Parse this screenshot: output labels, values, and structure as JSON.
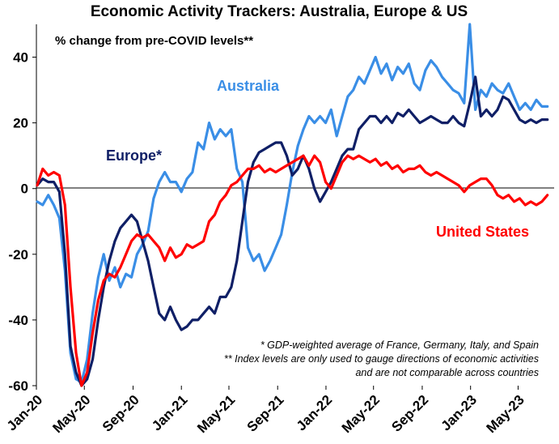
{
  "chart_data": {
    "type": "line",
    "title": "Economic Activity Trackers: Australia, Europe & US",
    "subtitle": "% change from pre-COVID levels**",
    "xlabel": "",
    "ylabel": "",
    "ylim": [
      -60,
      50
    ],
    "yticks": [
      -60,
      -40,
      -20,
      0,
      20,
      40
    ],
    "x_ticks": [
      "Jan-20",
      "May-20",
      "Sep-20",
      "Jan-21",
      "May-21",
      "Sep-21",
      "Jan-22",
      "May-22",
      "Sep-22",
      "Jan-23",
      "May-23"
    ],
    "x_range": [
      "2020-01-01",
      "2023-07-31"
    ],
    "grid": false,
    "annotations": [
      "* GDP-weighted average of France, Germany, Italy, and Spain",
      "** Index levels are only used to gauge directions of economic activities",
      "and are not comparable across countries"
    ],
    "series": [
      {
        "name": "Australia",
        "color": "#3A8EE6",
        "points": [
          [
            "2020-01-03",
            -4
          ],
          [
            "2020-01-17",
            -5
          ],
          [
            "2020-01-31",
            -2
          ],
          [
            "2020-02-14",
            -5
          ],
          [
            "2020-02-28",
            -9
          ],
          [
            "2020-03-13",
            -25
          ],
          [
            "2020-03-27",
            -50
          ],
          [
            "2020-04-10",
            -58
          ],
          [
            "2020-04-24",
            -59
          ],
          [
            "2020-05-08",
            -52
          ],
          [
            "2020-05-22",
            -38
          ],
          [
            "2020-06-05",
            -27
          ],
          [
            "2020-06-19",
            -20
          ],
          [
            "2020-07-03",
            -28
          ],
          [
            "2020-07-17",
            -24
          ],
          [
            "2020-07-31",
            -30
          ],
          [
            "2020-08-14",
            -26
          ],
          [
            "2020-08-28",
            -27
          ],
          [
            "2020-09-11",
            -20
          ],
          [
            "2020-09-25",
            -17
          ],
          [
            "2020-10-09",
            -13
          ],
          [
            "2020-10-23",
            -3
          ],
          [
            "2020-11-06",
            2
          ],
          [
            "2020-11-20",
            5
          ],
          [
            "2020-12-04",
            2
          ],
          [
            "2020-12-18",
            2
          ],
          [
            "2021-01-01",
            -1
          ],
          [
            "2021-01-15",
            3
          ],
          [
            "2021-01-29",
            5
          ],
          [
            "2021-02-12",
            14
          ],
          [
            "2021-02-26",
            12
          ],
          [
            "2021-03-12",
            20
          ],
          [
            "2021-03-26",
            15
          ],
          [
            "2021-04-09",
            18
          ],
          [
            "2021-04-23",
            16
          ],
          [
            "2021-05-07",
            18
          ],
          [
            "2021-05-21",
            6
          ],
          [
            "2021-06-04",
            2
          ],
          [
            "2021-06-18",
            -18
          ],
          [
            "2021-07-02",
            -22
          ],
          [
            "2021-07-16",
            -20
          ],
          [
            "2021-07-30",
            -25
          ],
          [
            "2021-08-13",
            -22
          ],
          [
            "2021-08-27",
            -18
          ],
          [
            "2021-09-10",
            -14
          ],
          [
            "2021-09-24",
            -5
          ],
          [
            "2021-10-08",
            5
          ],
          [
            "2021-10-22",
            13
          ],
          [
            "2021-11-05",
            18
          ],
          [
            "2021-11-19",
            22
          ],
          [
            "2021-12-03",
            20
          ],
          [
            "2021-12-17",
            22
          ],
          [
            "2021-12-31",
            20
          ],
          [
            "2022-01-14",
            24
          ],
          [
            "2022-01-28",
            16
          ],
          [
            "2022-02-11",
            22
          ],
          [
            "2022-02-25",
            28
          ],
          [
            "2022-03-11",
            30
          ],
          [
            "2022-03-25",
            34
          ],
          [
            "2022-04-08",
            32
          ],
          [
            "2022-04-22",
            36
          ],
          [
            "2022-05-06",
            40
          ],
          [
            "2022-05-20",
            35
          ],
          [
            "2022-06-03",
            38
          ],
          [
            "2022-06-17",
            33
          ],
          [
            "2022-07-01",
            37
          ],
          [
            "2022-07-15",
            35
          ],
          [
            "2022-07-29",
            38
          ],
          [
            "2022-08-12",
            32
          ],
          [
            "2022-08-26",
            30
          ],
          [
            "2022-09-09",
            36
          ],
          [
            "2022-09-23",
            39
          ],
          [
            "2022-10-07",
            37
          ],
          [
            "2022-10-21",
            34
          ],
          [
            "2022-11-04",
            32
          ],
          [
            "2022-11-18",
            30
          ],
          [
            "2022-12-02",
            29
          ],
          [
            "2022-12-16",
            26
          ],
          [
            "2022-12-30",
            50
          ],
          [
            "2023-01-13",
            24
          ],
          [
            "2023-01-27",
            30
          ],
          [
            "2023-02-10",
            28
          ],
          [
            "2023-02-24",
            32
          ],
          [
            "2023-03-10",
            30
          ],
          [
            "2023-03-24",
            29
          ],
          [
            "2023-04-07",
            32
          ],
          [
            "2023-04-21",
            28
          ],
          [
            "2023-05-05",
            24
          ],
          [
            "2023-05-19",
            26
          ],
          [
            "2023-06-02",
            24
          ],
          [
            "2023-06-16",
            27
          ],
          [
            "2023-06-30",
            25
          ],
          [
            "2023-07-14",
            25
          ]
        ]
      },
      {
        "name": "Europe*",
        "color": "#0F1F66",
        "points": [
          [
            "2020-01-03",
            1
          ],
          [
            "2020-01-17",
            3
          ],
          [
            "2020-01-31",
            2
          ],
          [
            "2020-02-14",
            2
          ],
          [
            "2020-02-28",
            -1
          ],
          [
            "2020-03-13",
            -20
          ],
          [
            "2020-03-27",
            -48
          ],
          [
            "2020-04-10",
            -56
          ],
          [
            "2020-04-24",
            -60
          ],
          [
            "2020-05-08",
            -58
          ],
          [
            "2020-05-22",
            -52
          ],
          [
            "2020-06-05",
            -40
          ],
          [
            "2020-06-19",
            -30
          ],
          [
            "2020-07-03",
            -22
          ],
          [
            "2020-07-17",
            -16
          ],
          [
            "2020-07-31",
            -12
          ],
          [
            "2020-08-14",
            -10
          ],
          [
            "2020-08-28",
            -8
          ],
          [
            "2020-09-11",
            -10
          ],
          [
            "2020-09-25",
            -16
          ],
          [
            "2020-10-09",
            -22
          ],
          [
            "2020-10-23",
            -30
          ],
          [
            "2020-11-06",
            -38
          ],
          [
            "2020-11-20",
            -40
          ],
          [
            "2020-12-04",
            -36
          ],
          [
            "2020-12-18",
            -40
          ],
          [
            "2021-01-01",
            -43
          ],
          [
            "2021-01-15",
            -42
          ],
          [
            "2021-01-29",
            -40
          ],
          [
            "2021-02-12",
            -40
          ],
          [
            "2021-02-26",
            -38
          ],
          [
            "2021-03-12",
            -36
          ],
          [
            "2021-03-26",
            -38
          ],
          [
            "2021-04-09",
            -33
          ],
          [
            "2021-04-23",
            -33
          ],
          [
            "2021-05-07",
            -30
          ],
          [
            "2021-05-21",
            -22
          ],
          [
            "2021-06-04",
            -10
          ],
          [
            "2021-06-18",
            2
          ],
          [
            "2021-07-02",
            8
          ],
          [
            "2021-07-16",
            11
          ],
          [
            "2021-07-30",
            12
          ],
          [
            "2021-08-13",
            13
          ],
          [
            "2021-08-27",
            14
          ],
          [
            "2021-09-10",
            14
          ],
          [
            "2021-09-24",
            10
          ],
          [
            "2021-10-08",
            4
          ],
          [
            "2021-10-22",
            6
          ],
          [
            "2021-11-05",
            10
          ],
          [
            "2021-11-19",
            6
          ],
          [
            "2021-12-03",
            0
          ],
          [
            "2021-12-17",
            -4
          ],
          [
            "2021-12-31",
            -1
          ],
          [
            "2022-01-14",
            2
          ],
          [
            "2022-01-28",
            6
          ],
          [
            "2022-02-11",
            10
          ],
          [
            "2022-02-25",
            12
          ],
          [
            "2022-03-11",
            12
          ],
          [
            "2022-03-25",
            18
          ],
          [
            "2022-04-08",
            20
          ],
          [
            "2022-04-22",
            22
          ],
          [
            "2022-05-06",
            22
          ],
          [
            "2022-05-20",
            20
          ],
          [
            "2022-06-03",
            22
          ],
          [
            "2022-06-17",
            20
          ],
          [
            "2022-07-01",
            23
          ],
          [
            "2022-07-15",
            22
          ],
          [
            "2022-07-29",
            24
          ],
          [
            "2022-08-12",
            22
          ],
          [
            "2022-08-26",
            20
          ],
          [
            "2022-09-09",
            21
          ],
          [
            "2022-09-23",
            22
          ],
          [
            "2022-10-07",
            21
          ],
          [
            "2022-10-21",
            20
          ],
          [
            "2022-11-04",
            20
          ],
          [
            "2022-11-18",
            22
          ],
          [
            "2022-12-02",
            20
          ],
          [
            "2022-12-16",
            19
          ],
          [
            "2022-12-30",
            26
          ],
          [
            "2023-01-13",
            34
          ],
          [
            "2023-01-27",
            22
          ],
          [
            "2023-02-10",
            24
          ],
          [
            "2023-02-24",
            22
          ],
          [
            "2023-03-10",
            24
          ],
          [
            "2023-03-24",
            28
          ],
          [
            "2023-04-07",
            27
          ],
          [
            "2023-04-21",
            24
          ],
          [
            "2023-05-05",
            21
          ],
          [
            "2023-05-19",
            20
          ],
          [
            "2023-06-02",
            21
          ],
          [
            "2023-06-16",
            20
          ],
          [
            "2023-06-30",
            21
          ],
          [
            "2023-07-14",
            21
          ]
        ]
      },
      {
        "name": "United States",
        "color": "#FF0000",
        "points": [
          [
            "2020-01-03",
            1
          ],
          [
            "2020-01-17",
            6
          ],
          [
            "2020-01-31",
            4
          ],
          [
            "2020-02-14",
            5
          ],
          [
            "2020-02-28",
            4
          ],
          [
            "2020-03-13",
            -5
          ],
          [
            "2020-03-27",
            -30
          ],
          [
            "2020-04-10",
            -50
          ],
          [
            "2020-04-24",
            -60
          ],
          [
            "2020-05-08",
            -56
          ],
          [
            "2020-05-22",
            -44
          ],
          [
            "2020-06-05",
            -34
          ],
          [
            "2020-06-19",
            -28
          ],
          [
            "2020-07-03",
            -26
          ],
          [
            "2020-07-17",
            -27
          ],
          [
            "2020-07-31",
            -24
          ],
          [
            "2020-08-14",
            -20
          ],
          [
            "2020-08-28",
            -16
          ],
          [
            "2020-09-11",
            -14
          ],
          [
            "2020-09-25",
            -15
          ],
          [
            "2020-10-09",
            -14
          ],
          [
            "2020-10-23",
            -16
          ],
          [
            "2020-11-06",
            -18
          ],
          [
            "2020-11-20",
            -22
          ],
          [
            "2020-12-04",
            -18
          ],
          [
            "2020-12-18",
            -21
          ],
          [
            "2021-01-01",
            -20
          ],
          [
            "2021-01-15",
            -17
          ],
          [
            "2021-01-29",
            -18
          ],
          [
            "2021-02-12",
            -17
          ],
          [
            "2021-02-26",
            -16
          ],
          [
            "2021-03-12",
            -10
          ],
          [
            "2021-03-26",
            -8
          ],
          [
            "2021-04-09",
            -4
          ],
          [
            "2021-04-23",
            -2
          ],
          [
            "2021-05-07",
            1
          ],
          [
            "2021-05-21",
            2
          ],
          [
            "2021-06-04",
            4
          ],
          [
            "2021-06-18",
            6
          ],
          [
            "2021-07-02",
            6
          ],
          [
            "2021-07-16",
            7
          ],
          [
            "2021-07-30",
            5
          ],
          [
            "2021-08-13",
            6
          ],
          [
            "2021-08-27",
            5
          ],
          [
            "2021-09-10",
            6
          ],
          [
            "2021-09-24",
            7
          ],
          [
            "2021-10-08",
            8
          ],
          [
            "2021-10-22",
            9
          ],
          [
            "2021-11-05",
            10
          ],
          [
            "2021-11-19",
            7
          ],
          [
            "2021-12-03",
            10
          ],
          [
            "2021-12-17",
            8
          ],
          [
            "2021-12-31",
            2
          ],
          [
            "2022-01-14",
            0
          ],
          [
            "2022-01-28",
            4
          ],
          [
            "2022-02-11",
            8
          ],
          [
            "2022-02-25",
            10
          ],
          [
            "2022-03-11",
            9
          ],
          [
            "2022-03-25",
            10
          ],
          [
            "2022-04-08",
            9
          ],
          [
            "2022-04-22",
            8
          ],
          [
            "2022-05-06",
            9
          ],
          [
            "2022-05-20",
            7
          ],
          [
            "2022-06-03",
            8
          ],
          [
            "2022-06-17",
            6
          ],
          [
            "2022-07-01",
            7
          ],
          [
            "2022-07-15",
            5
          ],
          [
            "2022-07-29",
            6
          ],
          [
            "2022-08-12",
            6
          ],
          [
            "2022-08-26",
            7
          ],
          [
            "2022-09-09",
            5
          ],
          [
            "2022-09-23",
            4
          ],
          [
            "2022-10-07",
            5
          ],
          [
            "2022-10-21",
            4
          ],
          [
            "2022-11-04",
            3
          ],
          [
            "2022-11-18",
            2
          ],
          [
            "2022-12-02",
            1
          ],
          [
            "2022-12-16",
            -1
          ],
          [
            "2022-12-30",
            1
          ],
          [
            "2023-01-13",
            2
          ],
          [
            "2023-01-27",
            3
          ],
          [
            "2023-02-10",
            3
          ],
          [
            "2023-02-24",
            1
          ],
          [
            "2023-03-10",
            -2
          ],
          [
            "2023-03-24",
            -3
          ],
          [
            "2023-04-07",
            -2
          ],
          [
            "2023-04-21",
            -4
          ],
          [
            "2023-05-05",
            -3
          ],
          [
            "2023-05-19",
            -5
          ],
          [
            "2023-06-02",
            -4
          ],
          [
            "2023-06-16",
            -5
          ],
          [
            "2023-06-30",
            -4
          ],
          [
            "2023-07-14",
            -2
          ]
        ]
      }
    ]
  }
}
